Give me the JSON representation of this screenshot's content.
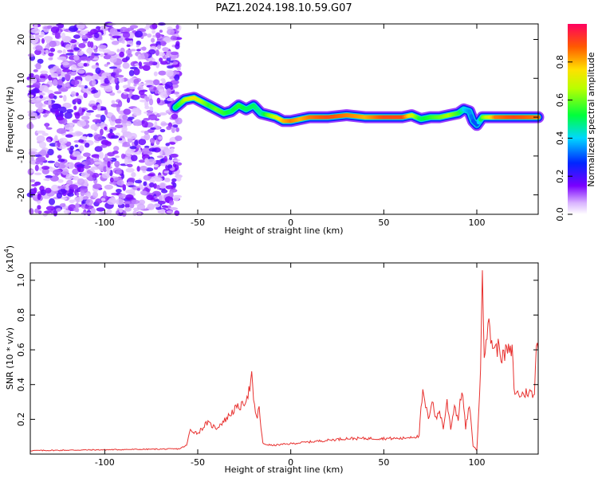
{
  "figure": {
    "title": "PAZ1.2024.198.10.59.G07"
  },
  "chart_data": [
    {
      "type": "heatmap",
      "xlabel": "Height of straight line (km)",
      "ylabel": "Frequency (Hz)",
      "xlim": [
        -140,
        133
      ],
      "ylim": [
        -25,
        24
      ],
      "xticks": [
        -100,
        -50,
        0,
        50,
        100
      ],
      "yticks": [
        20,
        10,
        0,
        -10,
        -20
      ],
      "colorbar": {
        "label": "Normalized spectral amplitude",
        "ticks": [
          "0.0",
          "0.2",
          "0.4",
          "0.6",
          "0.8"
        ],
        "tick_values": [
          0.0,
          0.2,
          0.4,
          0.6,
          0.8
        ],
        "range": [
          0,
          1
        ]
      },
      "noise_region_x": [
        -140,
        -60
      ],
      "ridge": {
        "x": [
          -62,
          -57,
          -52,
          -48,
          -44,
          -40,
          -36,
          -32,
          -28,
          -24,
          -20,
          -16,
          -12,
          -8,
          -4,
          0,
          5,
          10,
          20,
          30,
          40,
          50,
          60,
          65,
          70,
          75,
          80,
          85,
          90,
          93,
          96,
          98,
          100,
          103,
          110,
          120,
          133
        ],
        "freq": [
          2.5,
          4.5,
          5.0,
          4.0,
          3.0,
          2.0,
          1.0,
          1.5,
          3.0,
          2.0,
          3.0,
          1.0,
          0.5,
          0.0,
          -1.0,
          -1.0,
          -0.5,
          0.0,
          0.0,
          0.5,
          0.0,
          0.0,
          0.0,
          0.5,
          -0.5,
          0.0,
          0.0,
          0.5,
          1.0,
          2.0,
          1.5,
          -1.0,
          -2.0,
          0.0,
          0.0,
          0.0,
          0.0
        ],
        "amplitude": [
          0.5,
          0.65,
          0.75,
          0.65,
          0.55,
          0.6,
          0.55,
          0.5,
          0.55,
          0.5,
          0.5,
          0.45,
          0.6,
          0.7,
          0.8,
          0.85,
          0.8,
          0.85,
          0.9,
          0.85,
          0.8,
          0.9,
          0.9,
          0.7,
          0.5,
          0.55,
          0.6,
          0.65,
          0.55,
          0.4,
          0.35,
          0.3,
          0.3,
          0.6,
          0.85,
          0.9,
          0.85
        ]
      }
    },
    {
      "type": "line",
      "xlabel": "Height of straight line (km)",
      "ylabel": "SNR (10 * v/v)",
      "yscale_label": "(x10",
      "yscale_exp": "4",
      "yscale_close": ")",
      "xlim": [
        -140,
        133
      ],
      "ylim": [
        0,
        1.1
      ],
      "xticks": [
        -100,
        -50,
        0,
        50,
        100
      ],
      "yticks": [
        0.2,
        0.4,
        0.6,
        0.8,
        1.0
      ],
      "ytick_labels": [
        "0.2",
        "0.4",
        "0.6",
        "0.8",
        "1.0"
      ],
      "series": [
        {
          "color": "#e8312f",
          "x": [
            -140,
            -60,
            -56,
            -54,
            -50,
            -45,
            -40,
            -35,
            -30,
            -26,
            -24,
            -22,
            -21,
            -20,
            -18,
            -17,
            -16,
            -15,
            -10,
            0,
            10,
            20,
            30,
            40,
            50,
            60,
            65,
            69,
            70,
            71,
            72,
            74,
            76,
            78,
            80,
            82,
            84,
            86,
            88,
            90,
            92,
            94,
            96,
            98,
            100,
            101,
            102,
            103,
            104,
            106,
            108,
            110,
            112,
            114,
            116,
            118,
            119,
            120,
            121,
            124,
            128,
            131,
            132,
            133
          ],
          "y": [
            0.02,
            0.03,
            0.05,
            0.14,
            0.12,
            0.18,
            0.15,
            0.2,
            0.26,
            0.28,
            0.32,
            0.38,
            0.45,
            0.3,
            0.2,
            0.28,
            0.15,
            0.06,
            0.05,
            0.06,
            0.07,
            0.08,
            0.09,
            0.09,
            0.09,
            0.09,
            0.1,
            0.1,
            0.26,
            0.35,
            0.3,
            0.2,
            0.32,
            0.2,
            0.25,
            0.15,
            0.3,
            0.15,
            0.28,
            0.2,
            0.38,
            0.15,
            0.28,
            0.05,
            0.02,
            0.25,
            0.45,
            1.09,
            0.6,
            0.75,
            0.65,
            0.6,
            0.62,
            0.55,
            0.6,
            0.58,
            0.6,
            0.38,
            0.35,
            0.34,
            0.36,
            0.33,
            0.68,
            0.6
          ]
        }
      ]
    }
  ]
}
